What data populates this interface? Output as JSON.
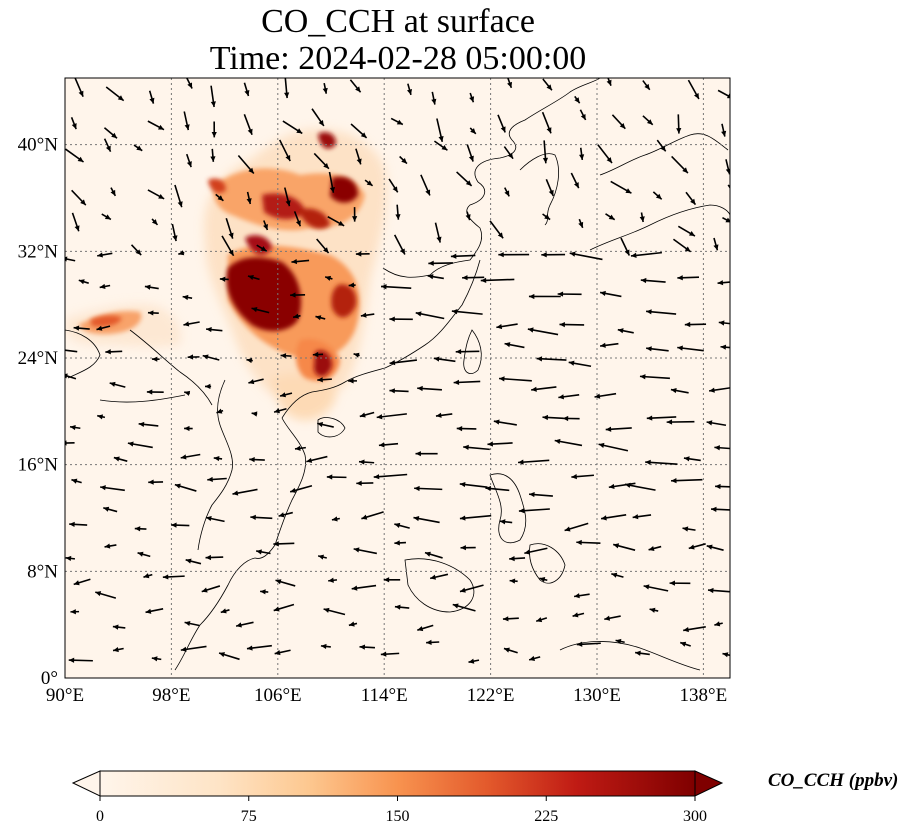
{
  "title": {
    "line1": "CO_CCH at surface",
    "line2": "Time: 2024-02-28 05:00:00"
  },
  "map": {
    "lon_range": [
      90,
      140
    ],
    "lat_range": [
      0,
      45
    ],
    "lon_ticks": [
      {
        "value": 90,
        "label": "90°E"
      },
      {
        "value": 98,
        "label": "98°E"
      },
      {
        "value": 106,
        "label": "106°E"
      },
      {
        "value": 114,
        "label": "114°E"
      },
      {
        "value": 122,
        "label": "122°E"
      },
      {
        "value": 130,
        "label": "130°E"
      },
      {
        "value": 138,
        "label": "138°E"
      }
    ],
    "lat_ticks": [
      {
        "value": 0,
        "label": "0°"
      },
      {
        "value": 8,
        "label": "8°N"
      },
      {
        "value": 16,
        "label": "16°N"
      },
      {
        "value": 24,
        "label": "24°N"
      },
      {
        "value": 32,
        "label": "32°N"
      },
      {
        "value": 40,
        "label": "40°N"
      }
    ],
    "gridlines": "dotted",
    "background_color": "#fff5eb",
    "high_concentration_regions": [
      {
        "lon": 104.5,
        "lat": 29.3,
        "value": 300
      },
      {
        "lon": 109.5,
        "lat": 27.5,
        "value": 280
      },
      {
        "lon": 110.8,
        "lat": 36.2,
        "value": 300
      },
      {
        "lon": 109.5,
        "lat": 40.0,
        "value": 280
      },
      {
        "lon": 105.5,
        "lat": 35.5,
        "value": 240
      },
      {
        "lon": 102.5,
        "lat": 36.5,
        "value": 230
      },
      {
        "lon": 108.5,
        "lat": 22.8,
        "value": 260
      },
      {
        "lon": 93.8,
        "lat": 27.3,
        "value": 200
      },
      {
        "lon": 107.0,
        "lat": 33.0,
        "value": 180
      }
    ]
  },
  "colorbar": {
    "label": "CO_CCH (ppbv)",
    "min": 0,
    "max": 300,
    "ticks": [
      "0",
      "75",
      "150",
      "225",
      "300"
    ],
    "colors": [
      "#fff5eb",
      "#fdd9b4",
      "#fdb07d",
      "#f3703a",
      "#d93d1e",
      "#a50f15",
      "#7f0000"
    ],
    "extend": "both"
  },
  "wind": {
    "northern_flow": "southeastward",
    "southern_flow": "westward",
    "maritime_flow": "west-southwestward"
  }
}
